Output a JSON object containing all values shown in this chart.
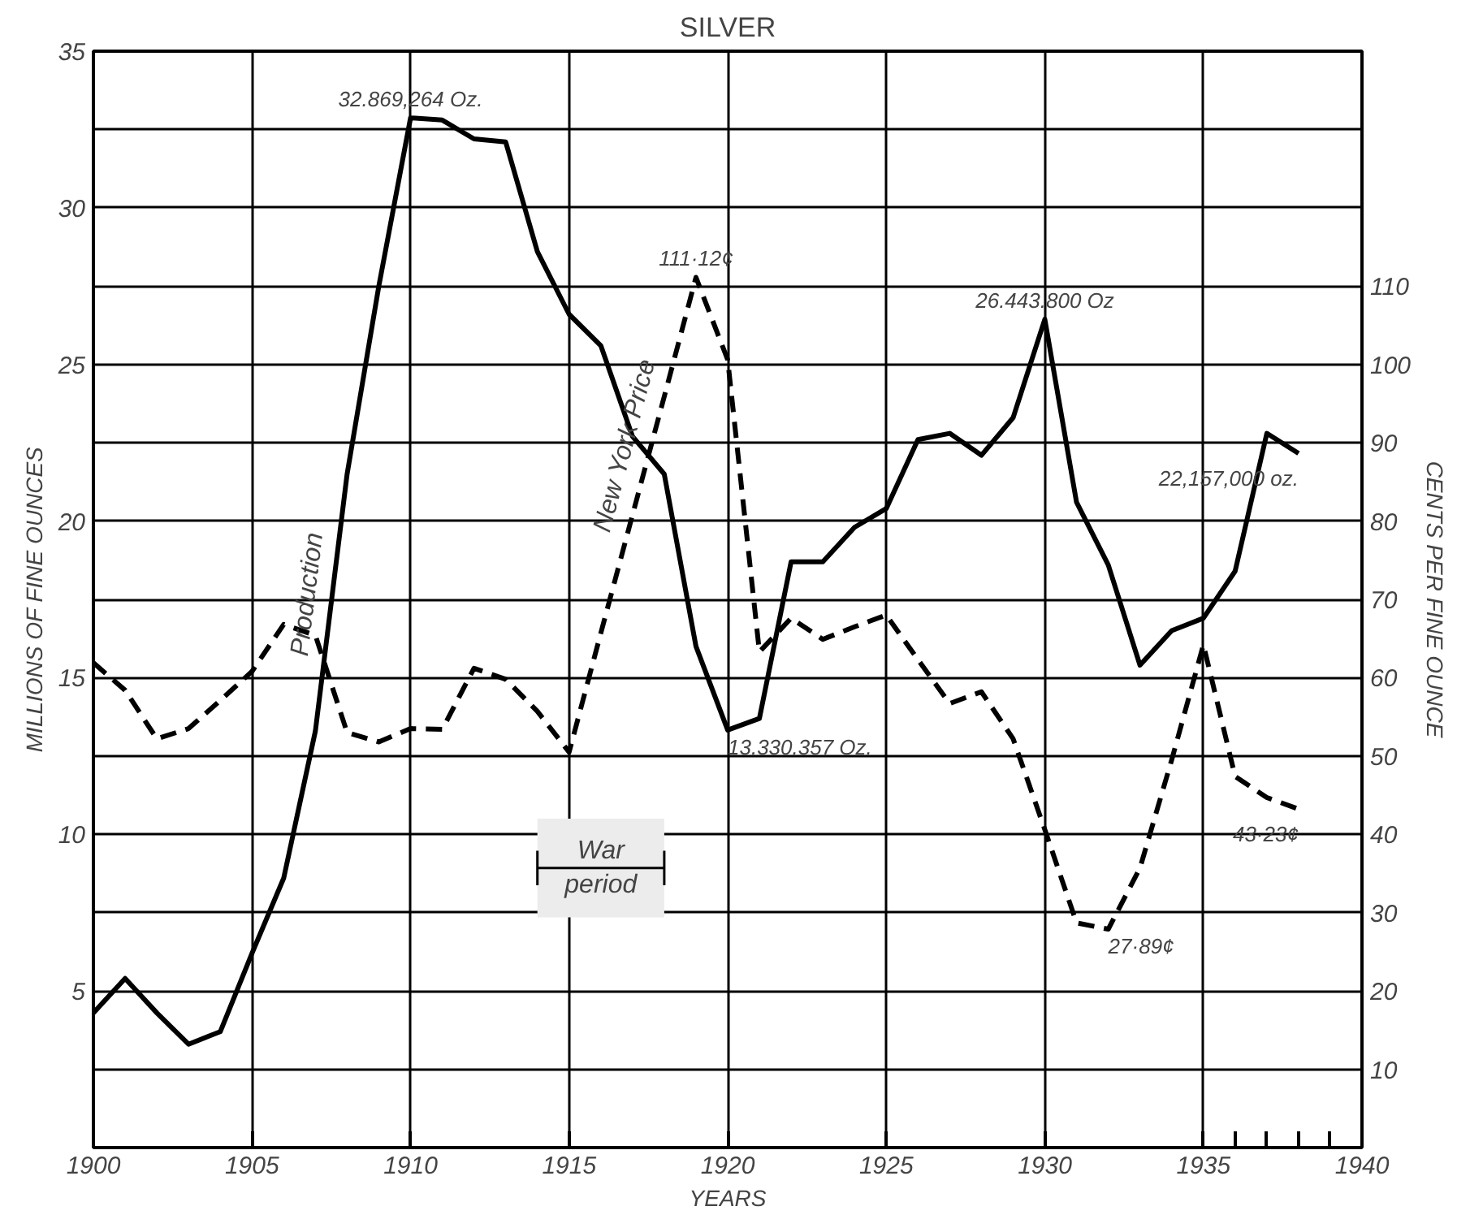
{
  "chart_data": {
    "type": "line",
    "title": "SILVER",
    "xlabel": "YEARS",
    "ylabel": "MILLIONS OF FINE OUNCES",
    "y2label": "CENTS PER FINE OUNCE",
    "x": [
      1900,
      1901,
      1902,
      1903,
      1904,
      1905,
      1906,
      1907,
      1908,
      1909,
      1910,
      1911,
      1912,
      1913,
      1914,
      1915,
      1916,
      1917,
      1918,
      1919,
      1920,
      1921,
      1922,
      1923,
      1924,
      1925,
      1926,
      1927,
      1928,
      1929,
      1930,
      1931,
      1932,
      1933,
      1934,
      1935,
      1936,
      1937,
      1938
    ],
    "series": [
      {
        "name": "Production",
        "color": "#000000",
        "line_style": "solid",
        "values": [
          4.3,
          5.4,
          4.3,
          3.3,
          3.7,
          6.2,
          8.6,
          13.3,
          21.5,
          27.5,
          32.87,
          32.8,
          32.2,
          32.1,
          28.6,
          26.6,
          25.6,
          22.7,
          21.5,
          16.0,
          13.33,
          13.7,
          18.7,
          18.7,
          19.8,
          20.4,
          22.6,
          22.8,
          22.1,
          23.3,
          26.44,
          20.6,
          18.6,
          15.4,
          16.5,
          16.9,
          18.4,
          22.8,
          22.16
        ]
      },
      {
        "name": "New York Price",
        "color": "#000000",
        "line_style": "dashed",
        "axis": "y2",
        "values": [
          61.9,
          58.4,
          52.2,
          53.5,
          57.1,
          60.8,
          66.8,
          65.4,
          53.0,
          51.8,
          53.5,
          53.4,
          61.2,
          59.8,
          55.7,
          50.5,
          65.7,
          80.8,
          95.9,
          111.12,
          100.6,
          63.3,
          67.6,
          64.9,
          66.5,
          68.0,
          62.3,
          56.7,
          58.2,
          52.2,
          40.6,
          28.7,
          27.89,
          35.7,
          49.5,
          64.2,
          47.4,
          44.7,
          43.23
        ]
      }
    ],
    "xlim": [
      1900,
      1940
    ],
    "xticks": [
      1900,
      1905,
      1910,
      1915,
      1920,
      1925,
      1930,
      1935,
      {
        "value": 1936,
        "label": null
      },
      {
        "value": 1937,
        "label": null
      },
      {
        "value": 1938,
        "label": null
      },
      {
        "value": 1939,
        "label": null
      },
      1940
    ],
    "ylim": [
      0,
      35
    ],
    "yticks": [
      {
        "value": 2.5,
        "label": null
      },
      5,
      {
        "value": 7.5,
        "label": null
      },
      10,
      {
        "value": 12.5,
        "label": null
      },
      15,
      {
        "value": 17.5,
        "label": null
      },
      20,
      {
        "value": 22.5,
        "label": null
      },
      25,
      {
        "value": 27.5,
        "label": null
      },
      30,
      {
        "value": 32.5,
        "label": null
      },
      35
    ],
    "y2lim": [
      0,
      140
    ],
    "y2ticks": [
      10,
      20,
      30,
      40,
      50,
      60,
      70,
      80,
      90,
      100,
      110
    ],
    "grid": true,
    "legend": false,
    "annotations": [
      {
        "text": "32.869,264 Oz.",
        "x": 1910,
        "y": 32.87
      },
      {
        "text": "111·12¢",
        "x": 1919,
        "y": 27.78
      },
      {
        "text": "26.443.800 Oz",
        "x": 1930,
        "y": 26.44
      },
      {
        "text": "13.330.357 Oz.",
        "x": 1920,
        "y": 13.33
      },
      {
        "text": "22,157,000 oz.",
        "x": 1938,
        "y": 22.16
      },
      {
        "text": "27·89¢",
        "x": 1932,
        "y": 6.97
      },
      {
        "text": "43·23¢",
        "x": 1938,
        "y": 10.81
      }
    ],
    "bands": [
      {
        "axis": "x",
        "from": 1914,
        "to": 1918,
        "label": "War period",
        "color": "#ececec"
      }
    ]
  }
}
